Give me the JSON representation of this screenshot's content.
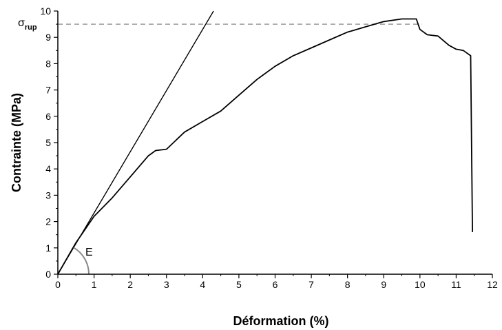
{
  "chart_data": {
    "type": "line",
    "xlabel": "Déformation (%)",
    "ylabel": "Contrainte (MPa)",
    "xlim": [
      0,
      12
    ],
    "ylim": [
      0,
      10
    ],
    "x_ticks": [
      0,
      1,
      2,
      3,
      4,
      5,
      6,
      7,
      8,
      9,
      10,
      11,
      12
    ],
    "y_ticks": [
      0,
      1,
      2,
      3,
      4,
      5,
      6,
      7,
      8,
      9,
      10
    ],
    "grid": false,
    "legend": "none",
    "series": [
      {
        "x": [
          0,
          0.5,
          1.0,
          1.5,
          2.0,
          2.5,
          2.7,
          3.0,
          3.5,
          4.0,
          4.5,
          5.0,
          5.5,
          6.0,
          6.5,
          7.0,
          7.5,
          8.0,
          8.5,
          9.0,
          9.5,
          9.9,
          10.0,
          10.2,
          10.5,
          10.8,
          11.0,
          11.2,
          11.4,
          11.45
        ],
        "y": [
          0,
          1.2,
          2.2,
          2.9,
          3.7,
          4.5,
          4.7,
          4.75,
          5.4,
          5.8,
          6.2,
          6.8,
          7.4,
          7.9,
          8.3,
          8.6,
          8.9,
          9.2,
          9.4,
          9.6,
          9.7,
          9.7,
          9.3,
          9.1,
          9.05,
          8.7,
          8.55,
          8.5,
          8.3,
          1.6
        ],
        "color": "#000000"
      }
    ],
    "tangent_line": {
      "x": [
        0,
        4.3
      ],
      "y": [
        0,
        10
      ],
      "color": "#000000"
    },
    "reference_line": {
      "y": 9.5,
      "style": "dashed",
      "color": "#999999"
    },
    "annotations": {
      "sigma_symbol": "σ",
      "sigma_subscript": "rup",
      "modulus_label": "E"
    }
  }
}
